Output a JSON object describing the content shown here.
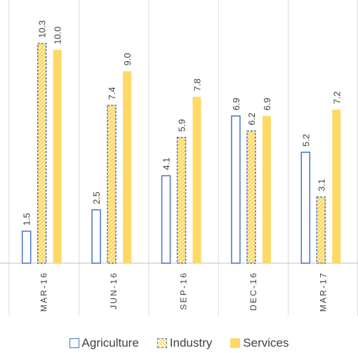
{
  "chart_data": {
    "type": "bar",
    "categories": [
      "MAR-16",
      "JUN-16",
      "SEP-16",
      "DEC-16",
      "MAR-17"
    ],
    "series": [
      {
        "name": "Agriculture",
        "values": [
          1.5,
          2.5,
          4.1,
          6.9,
          5.2
        ],
        "labels": [
          "1.5",
          "2.5",
          "4.1",
          "6.9",
          "5.2"
        ]
      },
      {
        "name": "Industry",
        "values": [
          10.3,
          7.4,
          5.9,
          6.2,
          3.1
        ],
        "labels": [
          "10.3",
          "7.4",
          "5.9",
          "6.2",
          "3.1"
        ]
      },
      {
        "name": "Services",
        "values": [
          10.0,
          9.0,
          7.8,
          6.9,
          7.2
        ],
        "labels": [
          "10.0",
          "9.0",
          "7.8",
          "6.9",
          "7.2"
        ]
      }
    ],
    "ylim": [
      0,
      10.3
    ],
    "gridlines": "vertical separators between categories",
    "legend_position": "bottom",
    "colors": {
      "agriculture_border": "#4472c4",
      "industry_fill": "#ffd966",
      "industry_border": "#4472c4",
      "services_fill": "#ffd966",
      "grid": "#d9d9d9",
      "axis": "#bfbfbf",
      "text": "#404040"
    }
  }
}
